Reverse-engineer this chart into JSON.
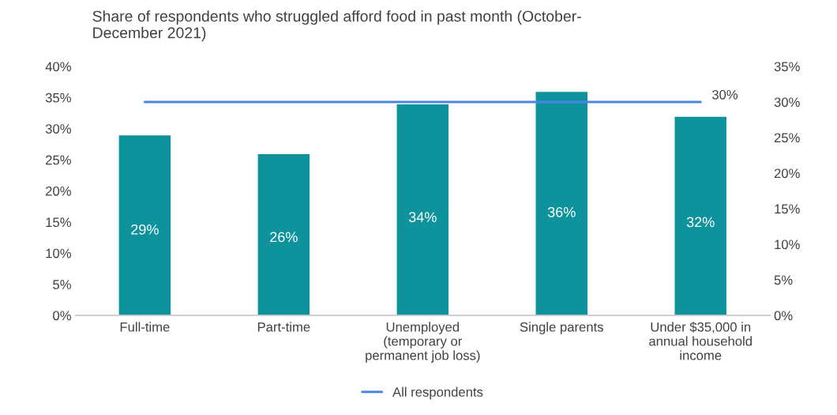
{
  "chart_data": {
    "type": "bar",
    "title": "Share of respondents who struggled afford food in past month (October-\nDecember 2021)",
    "categories": [
      "Full-time",
      "Part-time",
      "Unemployed\n(temporary or\npermanent job loss)",
      "Single parents",
      "Under $35,000 in\nannual household\nincome"
    ],
    "series": [
      {
        "color": "#0e939c",
        "values": [
          29,
          26,
          34,
          36,
          32
        ],
        "value_labels": [
          "29%",
          "26%",
          "34%",
          "36%",
          "32%"
        ]
      },
      {
        "type": "line",
        "axis": "y2",
        "name": "All respondents",
        "color": "#4a86e8",
        "values": [
          30,
          30,
          30,
          30,
          30
        ],
        "value_labels": [
          null,
          null,
          null,
          null,
          "30%"
        ]
      }
    ],
    "ylim": [
      0,
      40
    ],
    "yticks": [
      {
        "value": 0,
        "label": "0%"
      },
      {
        "value": 5,
        "label": "5%"
      },
      {
        "value": 10,
        "label": "10%"
      },
      {
        "value": 15,
        "label": "15%"
      },
      {
        "value": 20,
        "label": "20%"
      },
      {
        "value": 25,
        "label": "25%"
      },
      {
        "value": 30,
        "label": "30%"
      },
      {
        "value": 35,
        "label": "35%"
      },
      {
        "value": 40,
        "label": "40%"
      }
    ],
    "y2lim": [
      0,
      35
    ],
    "y2ticks": [
      {
        "value": 0,
        "label": "0%"
      },
      {
        "value": 5,
        "label": "5%"
      },
      {
        "value": 10,
        "label": "10%"
      },
      {
        "value": 15,
        "label": "15%"
      },
      {
        "value": 20,
        "label": "20%"
      },
      {
        "value": 25,
        "label": "25%"
      },
      {
        "value": 30,
        "label": "30%"
      },
      {
        "value": 35,
        "label": "35%"
      }
    ],
    "legend": "bottom",
    "grid": false
  }
}
